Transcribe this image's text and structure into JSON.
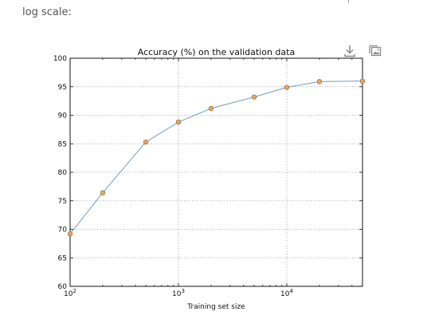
{
  "caption": "log scale:",
  "toolbar": {
    "download_icon": "download-icon",
    "expand_icon": "image-gallery-icon"
  },
  "chart_data": {
    "type": "line",
    "title": "Accuracy (%) on the validation data",
    "xlabel": "Training set size",
    "ylabel": "",
    "xscale": "log",
    "xlim": [
      100,
      50000
    ],
    "ylim": [
      60,
      100
    ],
    "grid": true,
    "xticks": [
      {
        "value": 100,
        "base": "10",
        "exp": "2"
      },
      {
        "value": 1000,
        "base": "10",
        "exp": "3"
      },
      {
        "value": 10000,
        "base": "10",
        "exp": "4"
      }
    ],
    "yticks": [
      60,
      65,
      70,
      75,
      80,
      85,
      90,
      95,
      100
    ],
    "series": [
      {
        "x": [
          100,
          200,
          500,
          1000,
          2000,
          5000,
          10000,
          20000,
          50000
        ],
        "y": [
          69.2,
          76.4,
          85.3,
          88.8,
          91.2,
          93.2,
          94.9,
          95.9,
          96.0
        ]
      }
    ],
    "colors": {
      "line": "#6f9cc0",
      "marker_fill": "#f0a55a",
      "marker_edge": "#8a6a3a"
    }
  }
}
